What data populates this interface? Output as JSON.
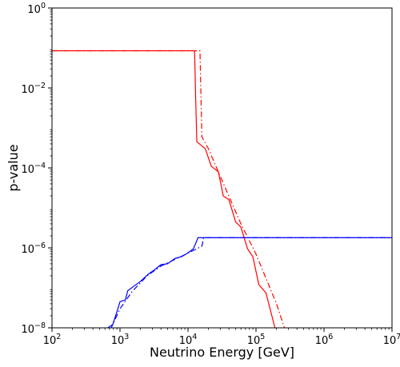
{
  "chart_data": {
    "type": "line",
    "xlabel": "Neutrino Energy [GeV]",
    "ylabel": "p-value",
    "xscale": "log",
    "yscale": "log",
    "xlim": [
      100,
      10000000
    ],
    "ylim": [
      1e-08,
      1
    ],
    "x_ticks": [
      {
        "value": 100,
        "base": "10",
        "exp": "2"
      },
      {
        "value": 1000,
        "base": "10",
        "exp": "3"
      },
      {
        "value": 10000,
        "base": "10",
        "exp": "4"
      },
      {
        "value": 100000,
        "base": "10",
        "exp": "5"
      },
      {
        "value": 1000000,
        "base": "10",
        "exp": "6"
      },
      {
        "value": 10000000,
        "base": "10",
        "exp": "7"
      }
    ],
    "y_ticks": [
      {
        "value": 1,
        "base": "10",
        "exp": "0"
      },
      {
        "value": 0.01,
        "base": "10",
        "exp": "−2"
      },
      {
        "value": 0.0001,
        "base": "10",
        "exp": "−4"
      },
      {
        "value": 1e-06,
        "base": "10",
        "exp": "−6"
      },
      {
        "value": 1e-08,
        "base": "10",
        "exp": "−8"
      }
    ],
    "grid": false,
    "legend": "none",
    "series": [
      {
        "color": "#ff0000",
        "linestyle": "solid",
        "points": [
          [
            100,
            0.085
          ],
          [
            12500,
            0.085
          ],
          [
            13000,
            0.0045
          ],
          [
            13500,
            0.00045
          ],
          [
            18000,
            0.0003
          ],
          [
            22000,
            0.00011
          ],
          [
            28000,
            8e-05
          ],
          [
            33000,
            2e-05
          ],
          [
            40000,
            1.6e-05
          ],
          [
            50000,
            4.5e-06
          ],
          [
            60000,
            3.3e-06
          ],
          [
            75000,
            9.5e-07
          ],
          [
            90000,
            6e-07
          ],
          [
            110000,
            1.2e-07
          ],
          [
            140000,
            7.5e-08
          ],
          [
            190000,
            1e-08
          ],
          [
            240000,
            5e-09
          ]
        ]
      },
      {
        "color": "#ff0000",
        "linestyle": "dashdot",
        "points": [
          [
            100,
            0.085
          ],
          [
            15000,
            0.085
          ],
          [
            16000,
            0.0006
          ],
          [
            20000,
            0.0003
          ],
          [
            30000,
            6e-05
          ],
          [
            60000,
            4e-06
          ],
          [
            100000,
            7e-07
          ],
          [
            200000,
            4e-08
          ],
          [
            300000,
            5e-09
          ]
        ]
      },
      {
        "color": "#0000ff",
        "linestyle": "solid",
        "points": [
          [
            600,
            5e-09
          ],
          [
            660,
            1e-08
          ],
          [
            780,
            1.2e-08
          ],
          [
            900,
            2.5e-08
          ],
          [
            1000,
            4.5e-08
          ],
          [
            1200,
            5e-08
          ],
          [
            1300,
            8.5e-08
          ],
          [
            1600,
            1.1e-07
          ],
          [
            2000,
            1.45e-07
          ],
          [
            2600,
            2.2e-07
          ],
          [
            3200,
            2.8e-07
          ],
          [
            4000,
            3.8e-07
          ],
          [
            5000,
            4e-07
          ],
          [
            6500,
            5.5e-07
          ],
          [
            8000,
            6e-07
          ],
          [
            10000,
            7.5e-07
          ],
          [
            12000,
            9.5e-07
          ],
          [
            13000,
            1.3e-06
          ],
          [
            14000,
            1.8e-06
          ],
          [
            100000,
            1.8e-06
          ],
          [
            10000000,
            1.8e-06
          ]
        ]
      },
      {
        "color": "#0000ff",
        "linestyle": "dashdot",
        "points": [
          [
            600,
            5e-09
          ],
          [
            700,
            8e-09
          ],
          [
            1000,
            3e-08
          ],
          [
            1500,
            8e-08
          ],
          [
            2500,
            2e-07
          ],
          [
            4000,
            3.5e-07
          ],
          [
            7000,
            5.5e-07
          ],
          [
            11000,
            8e-07
          ],
          [
            16000,
            1.1e-06
          ],
          [
            17000,
            1.8e-06
          ],
          [
            10000000,
            1.8e-06
          ]
        ]
      }
    ]
  }
}
